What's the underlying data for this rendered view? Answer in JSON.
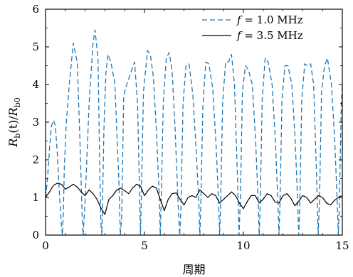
{
  "chart_data": {
    "type": "line",
    "title": "",
    "xlabel": "周期",
    "ylabel": "R_b(t)/R_b0",
    "xlim": [
      0,
      15
    ],
    "ylim": [
      0,
      6
    ],
    "x_ticks": [
      "0",
      "5",
      "10",
      "15"
    ],
    "y_ticks": [
      "0",
      "1",
      "2",
      "3",
      "4",
      "5",
      "6"
    ],
    "grid": false,
    "legend_position": "top-right",
    "series": [
      {
        "name": "f = 1.0 MHz",
        "style": "dashed",
        "color": "#1f77b4",
        "x": [
          0,
          0.1,
          0.2,
          0.3,
          0.4,
          0.5,
          0.6,
          0.7,
          0.8,
          0.85,
          0.9,
          0.95,
          1.05,
          1.2,
          1.4,
          1.6,
          1.75,
          1.85,
          1.9,
          2.0,
          2.2,
          2.4,
          2.5,
          2.65,
          2.75,
          2.8,
          2.85,
          2.95,
          3.05,
          3.15,
          3.3,
          3.5,
          3.7,
          3.78,
          3.85,
          3.95,
          4.1,
          4.3,
          4.5,
          4.65,
          4.75,
          4.8,
          4.85,
          4.95,
          5.15,
          5.3,
          5.45,
          5.6,
          5.75,
          5.8,
          5.85,
          5.95,
          6.1,
          6.25,
          6.4,
          6.55,
          6.7,
          6.78,
          6.85,
          6.95,
          7.1,
          7.25,
          7.45,
          7.62,
          7.75,
          7.8,
          7.85,
          7.95,
          8.1,
          8.25,
          8.45,
          8.62,
          8.75,
          8.8,
          8.85,
          8.95,
          9.1,
          9.25,
          9.4,
          9.55,
          9.7,
          9.78,
          9.85,
          9.95,
          10.1,
          10.25,
          10.45,
          10.62,
          10.75,
          10.8,
          10.85,
          10.95,
          11.1,
          11.25,
          11.45,
          11.62,
          11.75,
          11.8,
          11.85,
          11.95,
          12.1,
          12.25,
          12.45,
          12.62,
          12.75,
          12.8,
          12.85,
          12.95,
          13.1,
          13.25,
          13.4,
          13.55,
          13.7,
          13.78,
          13.85,
          13.95,
          14.1,
          14.25,
          14.45,
          14.62,
          14.75,
          14.8,
          14.85,
          14.95,
          15.0
        ],
        "y": [
          1.0,
          1.5,
          2.3,
          2.9,
          3.05,
          2.9,
          2.1,
          1.1,
          0.3,
          0.0,
          0.6,
          1.8,
          3.0,
          4.0,
          5.1,
          4.6,
          2.3,
          0.5,
          0.0,
          0.9,
          3.5,
          5.1,
          5.45,
          4.7,
          1.5,
          0.3,
          0.0,
          2.8,
          4.3,
          4.8,
          4.6,
          4.05,
          1.5,
          0.0,
          0.5,
          3.7,
          4.0,
          4.3,
          4.6,
          3.5,
          1.2,
          0.0,
          1.2,
          3.8,
          4.9,
          4.8,
          4.2,
          2.8,
          1.0,
          0.0,
          1.0,
          3.5,
          4.7,
          4.85,
          4.35,
          2.8,
          0.8,
          0.0,
          0.8,
          3.5,
          4.5,
          4.55,
          3.7,
          2.2,
          0.8,
          0.0,
          0.8,
          3.4,
          4.6,
          4.55,
          3.9,
          2.4,
          0.8,
          0.0,
          0.8,
          3.5,
          4.6,
          4.6,
          4.8,
          4.0,
          1.5,
          0.0,
          1.0,
          3.8,
          4.5,
          4.4,
          4.0,
          2.5,
          0.8,
          0.0,
          0.8,
          3.6,
          4.7,
          4.6,
          4.0,
          2.5,
          0.8,
          0.0,
          0.8,
          3.6,
          4.5,
          4.5,
          4.0,
          2.5,
          0.8,
          0.0,
          0.8,
          3.6,
          4.55,
          4.5,
          4.55,
          4.0,
          1.5,
          0.0,
          1.0,
          3.8,
          4.5,
          4.7,
          4.0,
          2.5,
          0.8,
          0.0,
          0.8,
          3.5,
          4.0
        ]
      },
      {
        "name": "f = 3.5 MHz",
        "style": "solid",
        "color": "#000000",
        "x": [
          0,
          0.2,
          0.4,
          0.6,
          0.8,
          1.0,
          1.2,
          1.4,
          1.6,
          1.8,
          2.0,
          2.2,
          2.4,
          2.6,
          2.8,
          3.0,
          3.2,
          3.4,
          3.6,
          3.8,
          4.0,
          4.2,
          4.4,
          4.6,
          4.8,
          5.0,
          5.2,
          5.4,
          5.6,
          5.8,
          6.0,
          6.2,
          6.4,
          6.6,
          6.8,
          7.0,
          7.2,
          7.4,
          7.6,
          7.8,
          8.0,
          8.2,
          8.4,
          8.6,
          8.8,
          9.0,
          9.2,
          9.4,
          9.6,
          9.8,
          10.0,
          10.2,
          10.4,
          10.6,
          10.8,
          11.0,
          11.2,
          11.4,
          11.6,
          11.8,
          12.0,
          12.2,
          12.4,
          12.6,
          12.8,
          13.0,
          13.2,
          13.4,
          13.6,
          13.8,
          14.0,
          14.2,
          14.4,
          14.6,
          14.8,
          15.0
        ],
        "y": [
          1.0,
          1.15,
          1.32,
          1.38,
          1.35,
          1.22,
          1.28,
          1.35,
          1.28,
          1.15,
          1.05,
          1.2,
          1.1,
          0.95,
          0.72,
          0.55,
          0.95,
          1.05,
          1.2,
          1.25,
          1.18,
          1.1,
          1.25,
          1.35,
          1.3,
          1.05,
          1.2,
          1.3,
          1.25,
          0.95,
          0.65,
          0.95,
          1.1,
          1.12,
          0.95,
          0.8,
          1.0,
          1.05,
          1.0,
          1.2,
          1.1,
          1.0,
          1.1,
          1.05,
          0.85,
          0.95,
          1.05,
          1.15,
          1.05,
          0.85,
          0.7,
          0.9,
          1.05,
          1.05,
          0.85,
          0.95,
          1.1,
          1.05,
          0.88,
          0.85,
          1.05,
          1.1,
          0.98,
          0.78,
          0.9,
          1.05,
          1.0,
          0.85,
          0.95,
          1.05,
          1.0,
          0.85,
          0.8,
          0.92,
          1.0,
          1.05
        ]
      }
    ]
  }
}
